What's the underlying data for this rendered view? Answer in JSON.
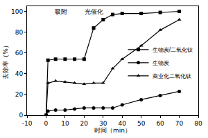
{
  "chart_data": {
    "type": "line",
    "x_label": "时间（min）",
    "y_label": "去除率（%）",
    "x": [
      0,
      1,
      5,
      10,
      15,
      20,
      25,
      30,
      35,
      40,
      50,
      60,
      70
    ],
    "series": [
      {
        "name": "生物炭/二氧化钛",
        "color": "#000000",
        "marker": "square",
        "values": [
          0,
          53,
          54,
          54,
          54,
          54,
          84,
          92,
          97,
          98,
          98,
          99,
          100
        ]
      },
      {
        "name": "生物炭",
        "color": "#000000",
        "marker": "circle",
        "values": [
          0,
          4,
          5,
          5,
          6,
          7,
          7,
          7,
          7,
          10,
          15,
          19,
          23
        ]
      },
      {
        "name": "商业化二氧化钛",
        "color": "#000000",
        "marker": "triangle",
        "values": [
          0,
          31,
          33,
          32,
          31,
          30,
          31,
          31,
          45,
          54,
          67,
          82,
          92
        ]
      }
    ],
    "annotations": [
      {
        "text": "吸附",
        "x": 8,
        "y": 100
      },
      {
        "text": "光催化",
        "x": 25,
        "y": 100
      }
    ],
    "xlim": [
      -10,
      80
    ],
    "xticks": [
      -10,
      0,
      10,
      20,
      30,
      40,
      50,
      60,
      70,
      80
    ],
    "ylim": [
      0,
      105
    ],
    "yticks": [
      0,
      20,
      40,
      60,
      80,
      100
    ],
    "grid": false,
    "legend": "lower right"
  }
}
